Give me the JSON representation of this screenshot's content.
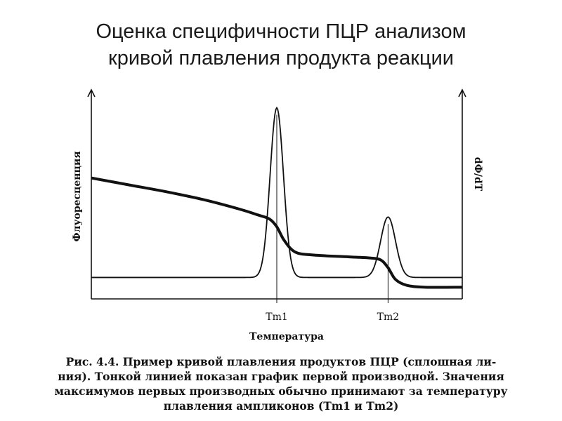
{
  "slide": {
    "title_lines": [
      "Оценка специфичности ПЦР анализом",
      "кривой плавления продукта реакции"
    ]
  },
  "chart_data": {
    "type": "line",
    "xlabel": "Температура",
    "ylabel_left": "Флуоресценция",
    "ylabel_right": "dФ/dT",
    "x_ticks": [
      {
        "label": "Tm1",
        "value": 0.5
      },
      {
        "label": "Tm2",
        "value": 0.8
      }
    ],
    "xlim": [
      0,
      1
    ],
    "ylim": [
      0,
      1
    ],
    "series": [
      {
        "style": "thick",
        "x": [
          0,
          0.1,
          0.2,
          0.3,
          0.4,
          0.45,
          0.48,
          0.5,
          0.52,
          0.55,
          0.6,
          0.7,
          0.75,
          0.78,
          0.8,
          0.82,
          0.85,
          0.9,
          1.0
        ],
        "y": [
          0.62,
          0.585,
          0.55,
          0.51,
          0.46,
          0.43,
          0.41,
          0.37,
          0.3,
          0.24,
          0.225,
          0.215,
          0.21,
          0.2,
          0.16,
          0.1,
          0.07,
          0.06,
          0.06
        ]
      },
      {
        "style": "thin",
        "peaks": [
          {
            "center": 0.5,
            "height": 0.98,
            "width": 0.018
          },
          {
            "center": 0.8,
            "height": 0.42,
            "width": 0.02
          }
        ],
        "baseline": 0.11
      }
    ]
  },
  "caption": {
    "lines": [
      "Рис. 4.4. Пример кривой плавления продуктов ПЦР (сплошная ли-",
      "ния). Тонкой линией показан график первой производной. Значения",
      "максимумов первых производных обычно принимают за температуру",
      "плавления ампликонов (Tm1 и Tm2)"
    ]
  }
}
